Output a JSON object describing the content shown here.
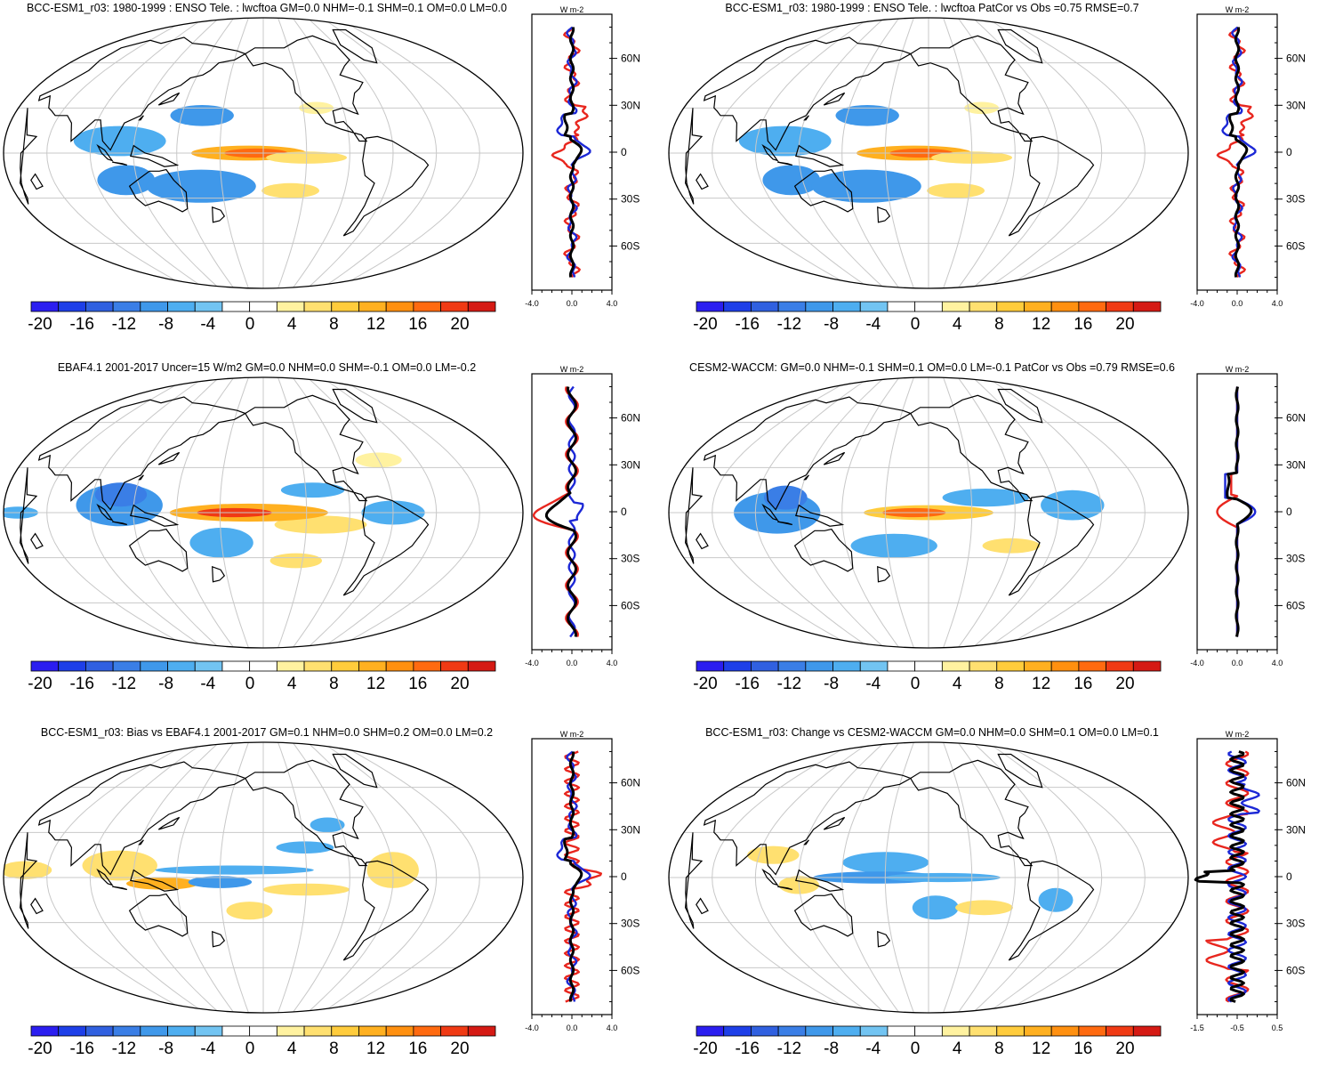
{
  "panels": [
    {
      "title": "BCC-ESM1_r03: 1980-1999 : ENSO Tele. : lwcftoa GM=0.0 NHM=-0.1 SHM=0.1 OM=0.0 LM=0.0",
      "profile_xticks": [
        "-4.0",
        "0.0",
        "4.0"
      ],
      "variant": "model"
    },
    {
      "title": "BCC-ESM1_r03: 1980-1999 : ENSO Tele. : lwcftoa PatCor vs Obs =0.75 RMSE=0.7",
      "profile_xticks": [
        "-4.0",
        "0.0",
        "4.0"
      ],
      "variant": "model"
    },
    {
      "title": "EBAF4.1 2001-2017 Uncer=15 W/m2 GM=0.0 NHM=0.0 SHM=-0.1 OM=0.0 LM=-0.2",
      "profile_xticks": [
        "-4.0",
        "0.0",
        "4.0"
      ],
      "variant": "obs"
    },
    {
      "title": "CESM2-WACCM: GM=0.0 NHM=-0.1 SHM=0.1 OM=0.0 LM=-0.1 PatCor vs Obs =0.79 RMSE=0.6",
      "profile_xticks": [
        "-4.0",
        "0.0",
        "4.0"
      ],
      "variant": "ref"
    },
    {
      "title": "BCC-ESM1_r03: Bias vs EBAF4.1 2001-2017 GM=0.1 NHM=0.0 SHM=0.2 OM=0.0 LM=0.2",
      "profile_xticks": [
        "-4.0",
        "0.0",
        "4.0"
      ],
      "variant": "bias"
    },
    {
      "title": "BCC-ESM1_r03: Change vs CESM2-WACCM GM=0.0 NHM=0.0 SHM=0.1 OM=0.0 LM=0.1",
      "profile_xticks": [
        "-1.5",
        "-0.5",
        "0.5"
      ],
      "variant": "change"
    }
  ],
  "profile_units": "W m-2",
  "profile_yticks": [
    "60N",
    "30N",
    "0",
    "30S",
    "60S"
  ],
  "colorbar": {
    "labels": [
      "-20",
      "-16",
      "-12",
      "-8",
      "-4",
      "0",
      "4",
      "8",
      "12",
      "16",
      "20"
    ],
    "colors": [
      "#2b1ef0",
      "#1e3fe8",
      "#3060e0",
      "#3a7ee6",
      "#3f98ea",
      "#4eaef0",
      "#72c4f2",
      "#ffffff",
      "#ffffff",
      "#fff2a0",
      "#ffe070",
      "#ffcc3c",
      "#ffb020",
      "#ff9010",
      "#ff6a10",
      "#f03a14",
      "#d51a14"
    ]
  },
  "line_colors": {
    "model": "#e8261e",
    "obs": "#1c28d6",
    "diff": "#000000"
  }
}
